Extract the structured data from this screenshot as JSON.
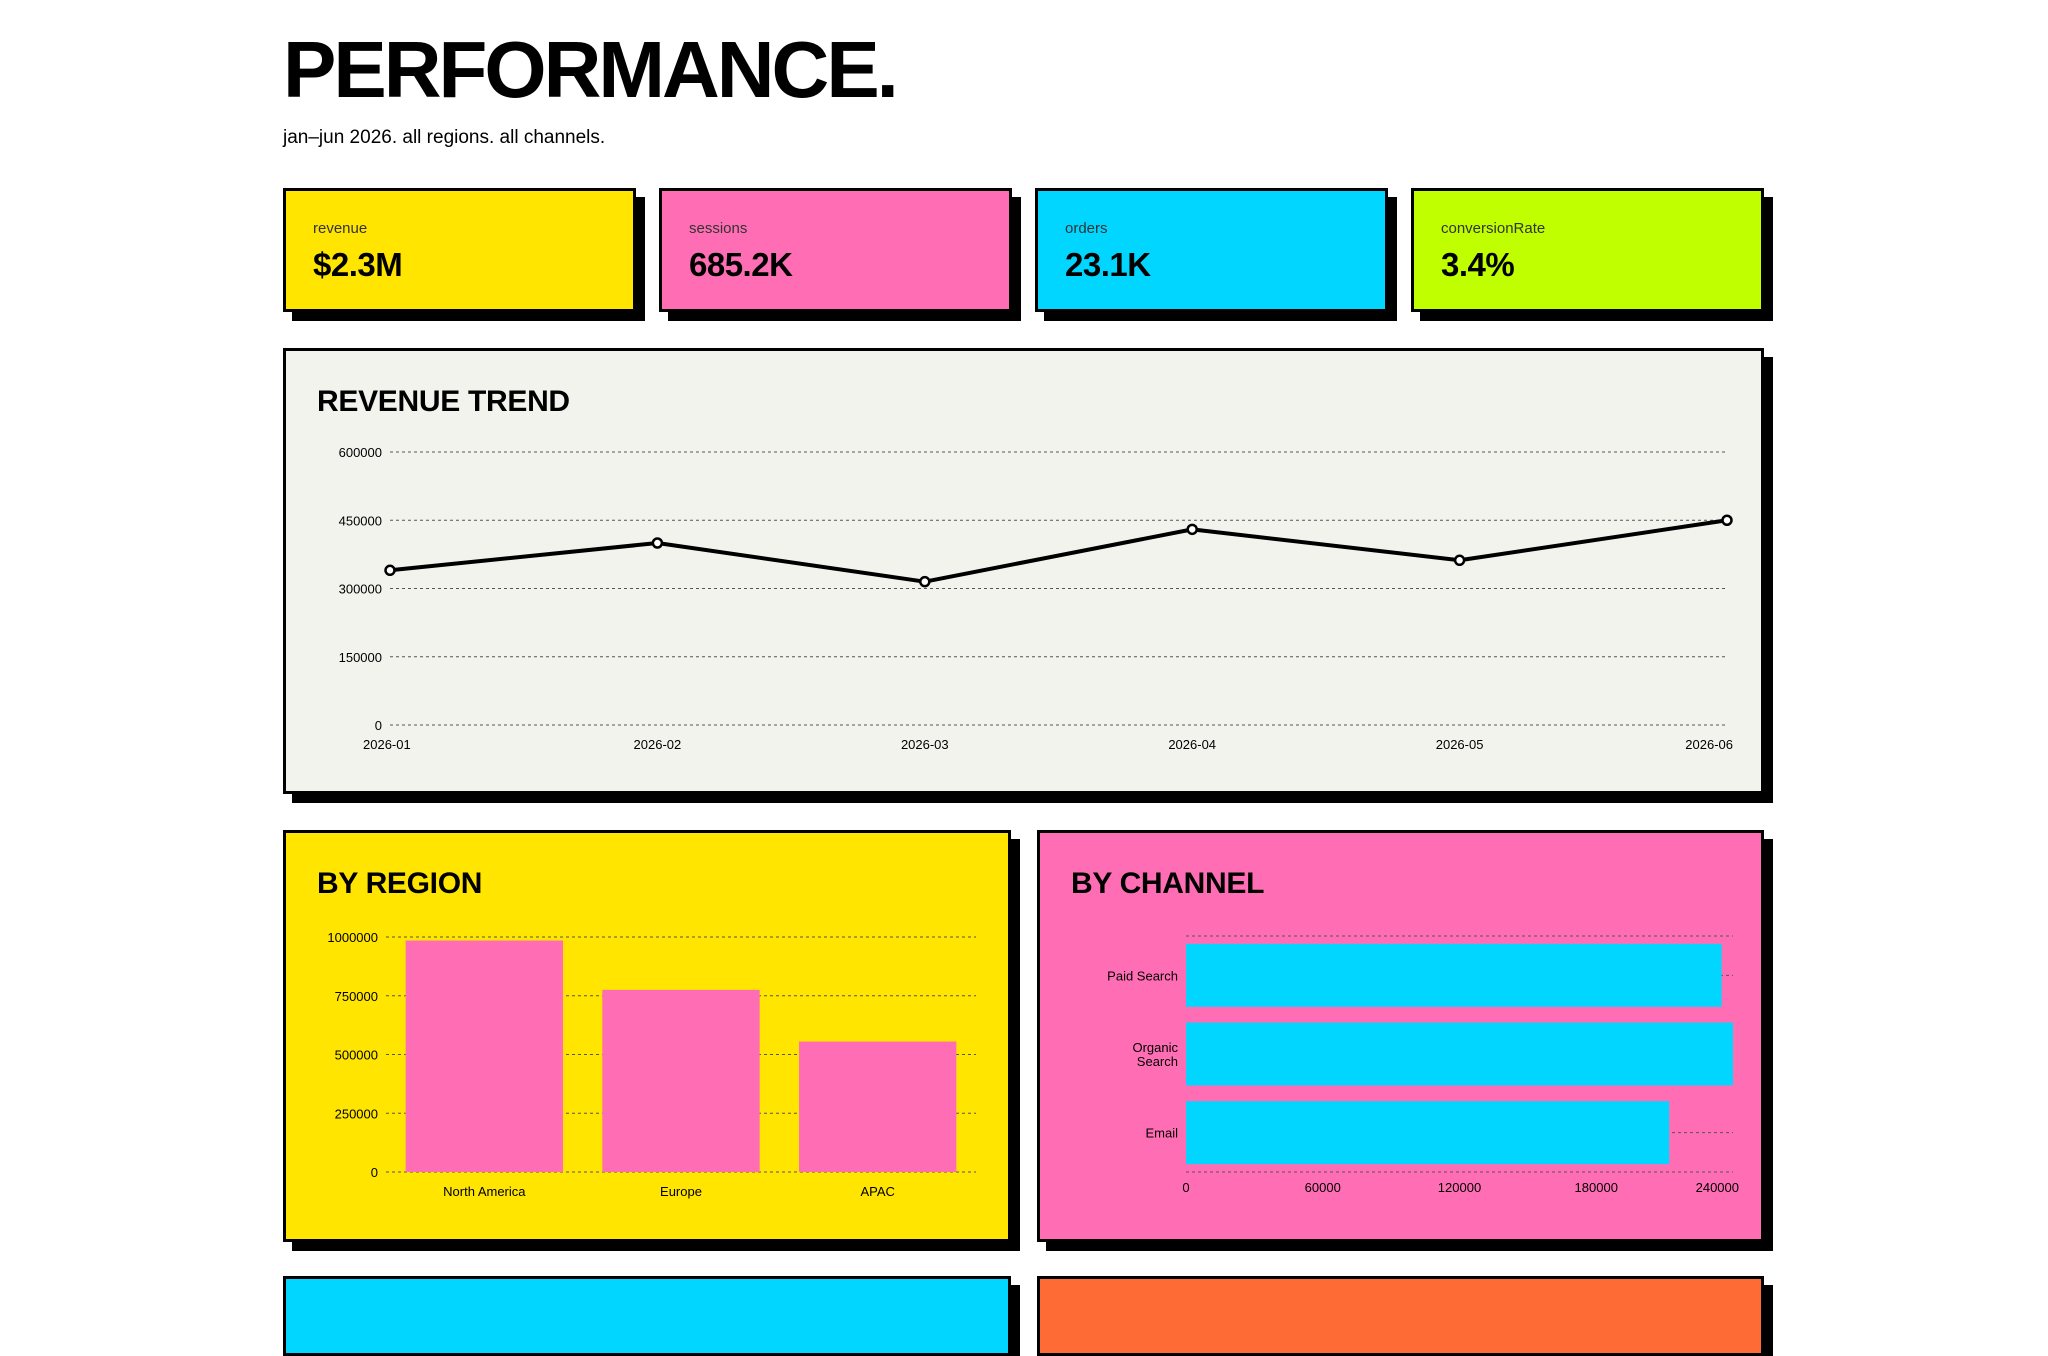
{
  "header": {
    "title": "PERFORMANCE.",
    "subtitle": "jan–jun 2026. all regions. all channels."
  },
  "kpis": [
    {
      "label": "revenue",
      "value": "$2.3M",
      "color": "#FFE500"
    },
    {
      "label": "sessions",
      "value": "685.2K",
      "color": "#FF6EB4"
    },
    {
      "label": "orders",
      "value": "23.1K",
      "color": "#00D6FF"
    },
    {
      "label": "conversionRate",
      "value": "3.4%",
      "color": "#BFFF00"
    }
  ],
  "panels": {
    "trend_title": "REVENUE TREND",
    "region_title": "BY REGION",
    "channel_title": "BY CHANNEL"
  },
  "colors": {
    "trend_bg": "#F3F3EE",
    "region_bg": "#FFE500",
    "region_bar": "#FF6EB4",
    "channel_bg": "#FF6EB4",
    "channel_bar": "#00D6FF",
    "bottom_left_bg": "#00D6FF",
    "bottom_right_bg": "#FF6B35"
  },
  "chart_data": [
    {
      "type": "line",
      "title": "REVENUE TREND",
      "x": [
        "2026-01",
        "2026-02",
        "2026-03",
        "2026-04",
        "2026-05",
        "2026-06"
      ],
      "values": [
        340000,
        400000,
        315000,
        430000,
        362000,
        450000
      ],
      "yticks": [
        "0",
        "150000",
        "300000",
        "450000",
        "600000"
      ],
      "ylim": [
        0,
        600000
      ],
      "grid": true
    },
    {
      "type": "bar",
      "title": "BY REGION",
      "categories": [
        "North America",
        "Europe",
        "APAC"
      ],
      "values": [
        985000,
        775000,
        555000
      ],
      "yticks": [
        "0",
        "250000",
        "500000",
        "750000",
        "1000000"
      ],
      "ylim": [
        0,
        1000000
      ],
      "grid": true
    },
    {
      "type": "bar",
      "orientation": "horizontal",
      "title": "BY CHANNEL",
      "categories": [
        "Paid Search",
        "Organic Search",
        "Email"
      ],
      "category_lines": [
        [
          "Paid Search"
        ],
        [
          "Organic",
          "Search"
        ],
        [
          "Email"
        ]
      ],
      "values": [
        235000,
        240000,
        212000
      ],
      "xticks": [
        "0",
        "60000",
        "120000",
        "180000",
        "240000"
      ],
      "xlim": [
        0,
        240000
      ],
      "grid": true
    }
  ]
}
